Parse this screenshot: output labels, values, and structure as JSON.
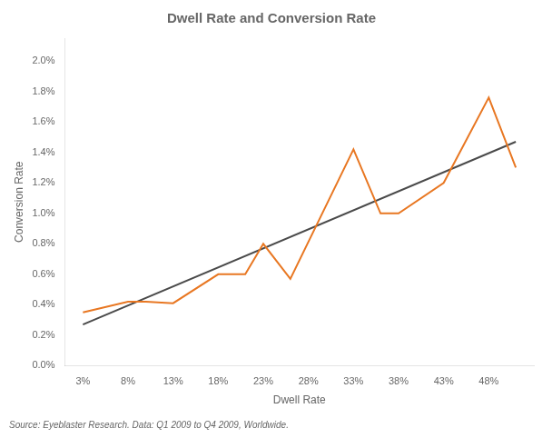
{
  "chart_data": {
    "type": "line",
    "title": "Dwell Rate and Conversion Rate",
    "x_label": "Dwell Rate",
    "y_label": "Conversion Rate",
    "annotations": [
      "Source: Eyeblaster Research. Data: Q1 2009 to Q4 2009, Worldwide."
    ],
    "series": [
      {
        "color": "#E87722",
        "x": [
          3,
          8,
          10,
          13,
          18,
          21,
          23,
          26,
          33,
          36,
          38,
          43,
          48,
          51
        ],
        "values": [
          0.0035,
          0.0042,
          0.0042,
          0.0041,
          0.006,
          0.006,
          0.008,
          0.0057,
          0.0142,
          0.01,
          0.01,
          0.012,
          0.0176,
          0.013
        ]
      },
      {
        "color": "#4A4A4A",
        "x": [
          3,
          51
        ],
        "values": [
          0.0027,
          0.0147
        ]
      }
    ],
    "xlim": [
      1,
      53
    ],
    "xticks": [
      {
        "value": 3,
        "label": "3%"
      },
      {
        "value": 8,
        "label": "8%"
      },
      {
        "value": 13,
        "label": "13%"
      },
      {
        "value": 18,
        "label": "18%"
      },
      {
        "value": 23,
        "label": "23%"
      },
      {
        "value": 28,
        "label": "28%"
      },
      {
        "value": 33,
        "label": "33%"
      },
      {
        "value": 38,
        "label": "38%"
      },
      {
        "value": 43,
        "label": "43%"
      },
      {
        "value": 48,
        "label": "48%"
      }
    ],
    "ylim": [
      0.0,
      0.0215
    ],
    "yticks": [
      {
        "value": 0.0,
        "label": "0.0%"
      },
      {
        "value": 0.002,
        "label": "0.2%"
      },
      {
        "value": 0.004,
        "label": "0.4%"
      },
      {
        "value": 0.006,
        "label": "0.6%"
      },
      {
        "value": 0.008,
        "label": "0.8%"
      },
      {
        "value": 0.01,
        "label": "1.0%"
      },
      {
        "value": 0.012,
        "label": "1.2%"
      },
      {
        "value": 0.014,
        "label": "1.4%"
      },
      {
        "value": 0.016,
        "label": "1.6%"
      },
      {
        "value": 0.018,
        "label": "1.8%"
      },
      {
        "value": 0.02,
        "label": "2.0%"
      }
    ],
    "grid": false
  }
}
